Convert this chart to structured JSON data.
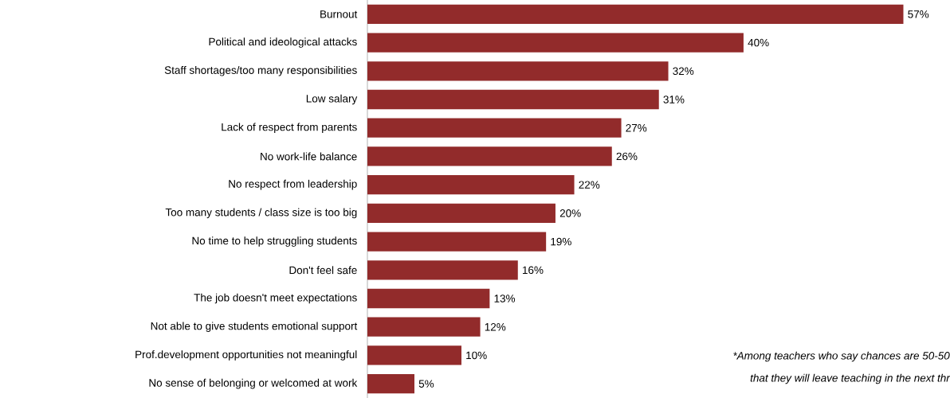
{
  "chart_data": {
    "type": "bar",
    "orientation": "horizontal",
    "color": "#922b2b",
    "categories": [
      "Burnout",
      "Political and ideological attacks",
      "Staff shortages/too many responsibilities",
      "Low salary",
      "Lack of respect from parents",
      "No work-life balance",
      "No respect from leadership",
      "Too many students / class size is too big",
      "No time to help struggling students",
      "Don't feel safe",
      "The job doesn't meet expectations",
      "Not able to give students emotional support",
      "Prof.development opportunities not meaningful",
      "No sense of belonging or welcomed at work"
    ],
    "values": [
      57,
      40,
      32,
      31,
      27,
      26,
      22,
      20,
      19,
      16,
      13,
      12,
      10,
      5
    ],
    "value_labels": [
      "57%",
      "40%",
      "32%",
      "31%",
      "27%",
      "26%",
      "22%",
      "20%",
      "19%",
      "16%",
      "13%",
      "12%",
      "10%",
      "5%"
    ],
    "annotations": [
      "*Among teachers who say chances are 50-50",
      "that they will leave teaching in the next thr"
    ]
  }
}
